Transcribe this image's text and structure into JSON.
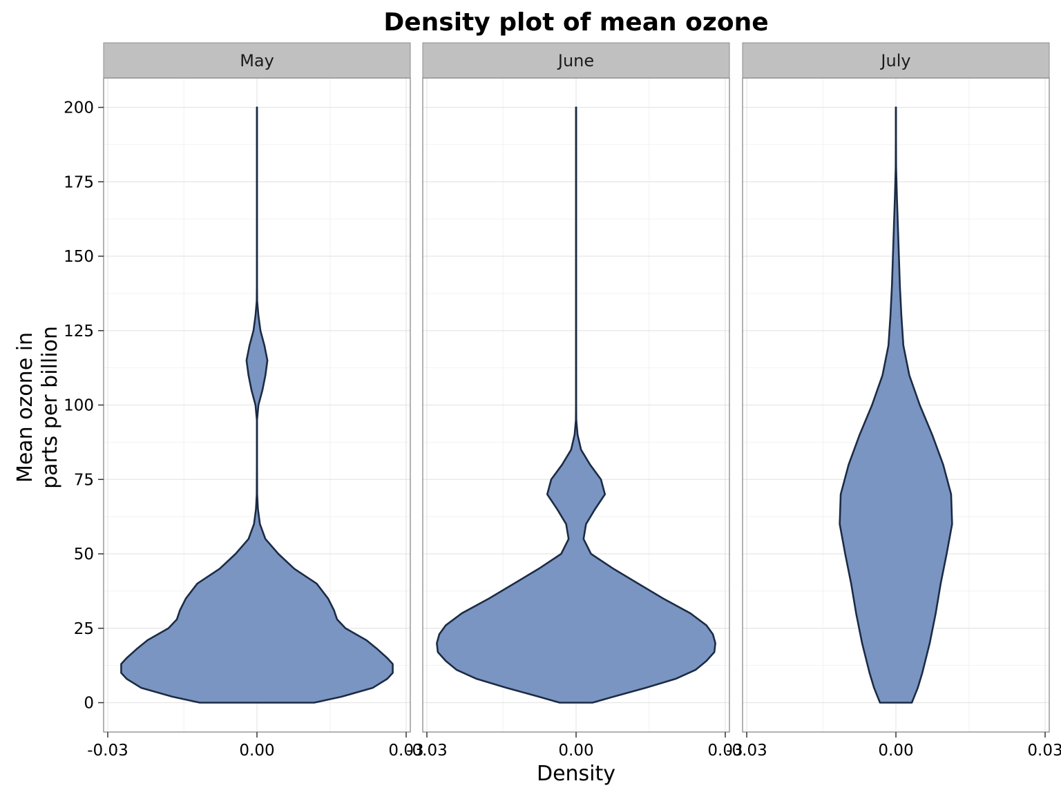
{
  "chart_data": {
    "type": "violin",
    "title": "Density plot of mean ozone",
    "xlabel": "Density",
    "ylabel_lines": [
      "Mean ozone in",
      "parts per billion"
    ],
    "ylim": [
      -10,
      210
    ],
    "xlim": [
      -0.03,
      0.03
    ],
    "y_ticks": [
      0,
      25,
      50,
      75,
      100,
      125,
      150,
      175,
      200
    ],
    "y_tick_labels": [
      "0",
      "25",
      "50",
      "75",
      "100",
      "125",
      "150",
      "175",
      "200"
    ],
    "x_ticks": [
      -0.03,
      0.0,
      0.03
    ],
    "x_tick_labels": [
      "-0.03",
      "0.00",
      "0.03"
    ],
    "grid": true,
    "colors": {
      "fill": "#7b95c2",
      "outline": "#1b2b44",
      "strip": "#c0c0c0",
      "grid": "#e5e5e5"
    },
    "panels": [
      {
        "name": "May",
        "profile": [
          {
            "y": 0,
            "w": 0.0115
          },
          {
            "y": 2,
            "w": 0.017
          },
          {
            "y": 5,
            "w": 0.0233
          },
          {
            "y": 8,
            "w": 0.0262
          },
          {
            "y": 10,
            "w": 0.0273
          },
          {
            "y": 13,
            "w": 0.0273
          },
          {
            "y": 15,
            "w": 0.0262
          },
          {
            "y": 18,
            "w": 0.0242
          },
          {
            "y": 21,
            "w": 0.022
          },
          {
            "y": 25,
            "w": 0.0178
          },
          {
            "y": 28,
            "w": 0.0161
          },
          {
            "y": 31,
            "w": 0.0155
          },
          {
            "y": 35,
            "w": 0.0143
          },
          {
            "y": 40,
            "w": 0.012
          },
          {
            "y": 45,
            "w": 0.0075
          },
          {
            "y": 50,
            "w": 0.0043
          },
          {
            "y": 55,
            "w": 0.0017
          },
          {
            "y": 60,
            "w": 0.0006
          },
          {
            "y": 65,
            "w": 0.0002
          },
          {
            "y": 70,
            "w": 4e-05
          },
          {
            "y": 80,
            "w": 2e-05
          },
          {
            "y": 95,
            "w": 2e-05
          },
          {
            "y": 100,
            "w": 0.0003
          },
          {
            "y": 105,
            "w": 0.0011
          },
          {
            "y": 110,
            "w": 0.0017
          },
          {
            "y": 115,
            "w": 0.0021
          },
          {
            "y": 120,
            "w": 0.0015
          },
          {
            "y": 125,
            "w": 0.0007
          },
          {
            "y": 130,
            "w": 0.0003
          },
          {
            "y": 135,
            "w": 4e-05
          },
          {
            "y": 140,
            "w": 2e-05
          },
          {
            "y": 200,
            "w": 2e-05
          }
        ]
      },
      {
        "name": "June",
        "profile": [
          {
            "y": 0,
            "w": 0.0033
          },
          {
            "y": 2,
            "w": 0.0075
          },
          {
            "y": 5,
            "w": 0.014
          },
          {
            "y": 8,
            "w": 0.02
          },
          {
            "y": 11,
            "w": 0.024
          },
          {
            "y": 14,
            "w": 0.0262
          },
          {
            "y": 17,
            "w": 0.0278
          },
          {
            "y": 20,
            "w": 0.028
          },
          {
            "y": 23,
            "w": 0.0275
          },
          {
            "y": 26,
            "w": 0.0262
          },
          {
            "y": 30,
            "w": 0.023
          },
          {
            "y": 35,
            "w": 0.0175
          },
          {
            "y": 40,
            "w": 0.0125
          },
          {
            "y": 45,
            "w": 0.0075
          },
          {
            "y": 50,
            "w": 0.003
          },
          {
            "y": 55,
            "w": 0.0015
          },
          {
            "y": 60,
            "w": 0.002
          },
          {
            "y": 65,
            "w": 0.0038
          },
          {
            "y": 70,
            "w": 0.0058
          },
          {
            "y": 75,
            "w": 0.005
          },
          {
            "y": 80,
            "w": 0.0028
          },
          {
            "y": 85,
            "w": 0.001
          },
          {
            "y": 90,
            "w": 0.0003
          },
          {
            "y": 95,
            "w": 4e-05
          },
          {
            "y": 100,
            "w": 2e-05
          },
          {
            "y": 200,
            "w": 2e-05
          }
        ]
      },
      {
        "name": "July",
        "profile": [
          {
            "y": 0,
            "w": 0.0032
          },
          {
            "y": 5,
            "w": 0.0044
          },
          {
            "y": 10,
            "w": 0.0053
          },
          {
            "y": 20,
            "w": 0.0068
          },
          {
            "y": 30,
            "w": 0.008
          },
          {
            "y": 40,
            "w": 0.009
          },
          {
            "y": 50,
            "w": 0.0102
          },
          {
            "y": 60,
            "w": 0.0113
          },
          {
            "y": 70,
            "w": 0.0111
          },
          {
            "y": 80,
            "w": 0.0095
          },
          {
            "y": 90,
            "w": 0.0073
          },
          {
            "y": 100,
            "w": 0.0048
          },
          {
            "y": 110,
            "w": 0.0027
          },
          {
            "y": 120,
            "w": 0.0015
          },
          {
            "y": 130,
            "w": 0.0011
          },
          {
            "y": 140,
            "w": 0.0008
          },
          {
            "y": 150,
            "w": 0.0006
          },
          {
            "y": 160,
            "w": 0.0004
          },
          {
            "y": 170,
            "w": 0.0002
          },
          {
            "y": 180,
            "w": 4e-05
          },
          {
            "y": 190,
            "w": 2e-05
          },
          {
            "y": 200,
            "w": 2e-05
          }
        ]
      }
    ]
  }
}
